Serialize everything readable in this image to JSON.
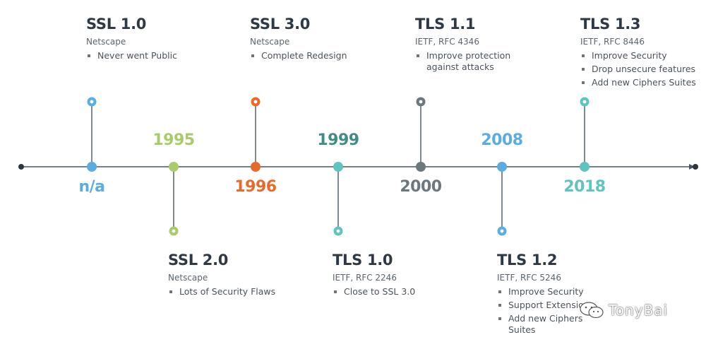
{
  "timeline": {
    "colors": {
      "axis": "#4a5561",
      "blue": "#5aade0",
      "green": "#a8cc6a",
      "orange": "#e76a2b",
      "teal": "#5fc3c0",
      "darkteal": "#3f8d86",
      "slate": "#6b7880"
    },
    "nodes": [
      {
        "year": "n/a",
        "year_color": "#5aade0",
        "dot_color": "#5aade0"
      },
      {
        "year": "1995",
        "year_color": "#a8cc6a",
        "dot_color": "#a8cc6a"
      },
      {
        "year": "1996",
        "year_color": "#e76a2b",
        "dot_color": "#e76a2b"
      },
      {
        "year": "1999",
        "year_color": "#3f8d86",
        "dot_color": "#5fc3c0"
      },
      {
        "year": "2000",
        "year_color": "#6b7880",
        "dot_color": "#6b7880"
      },
      {
        "year": "2008",
        "year_color": "#5aade0",
        "dot_color": "#5aade0"
      },
      {
        "year": "2018",
        "year_color": "#5fc3c0",
        "dot_color": "#5fc3c0"
      }
    ],
    "versions": [
      {
        "title": "SSL 1.0",
        "org": "Netscape",
        "items": [
          "Never went Public"
        ]
      },
      {
        "title": "SSL 2.0",
        "org": "Netscape",
        "items": [
          "Lots of Security Flaws"
        ]
      },
      {
        "title": "SSL 3.0",
        "org": "Netscape",
        "items": [
          "Complete Redesign"
        ]
      },
      {
        "title": "TLS 1.0",
        "org": "IETF, RFC 2246",
        "items": [
          "Close to SSL 3.0"
        ]
      },
      {
        "title": "TLS 1.1",
        "org": "IETF, RFC 4346",
        "items": [
          "Improve protection against attacks"
        ]
      },
      {
        "title": "TLS 1.2",
        "org": "IETF, RFC 5246",
        "items": [
          "Improve Security",
          "Support Extensions",
          "Add new Ciphers Suites"
        ]
      },
      {
        "title": "TLS 1.3",
        "org": "IETF, RFC 8446",
        "items": [
          "Improve Security",
          "Drop unsecure features",
          "Add new Ciphers Suites"
        ]
      }
    ]
  },
  "watermark": {
    "text": "TonyBai"
  }
}
